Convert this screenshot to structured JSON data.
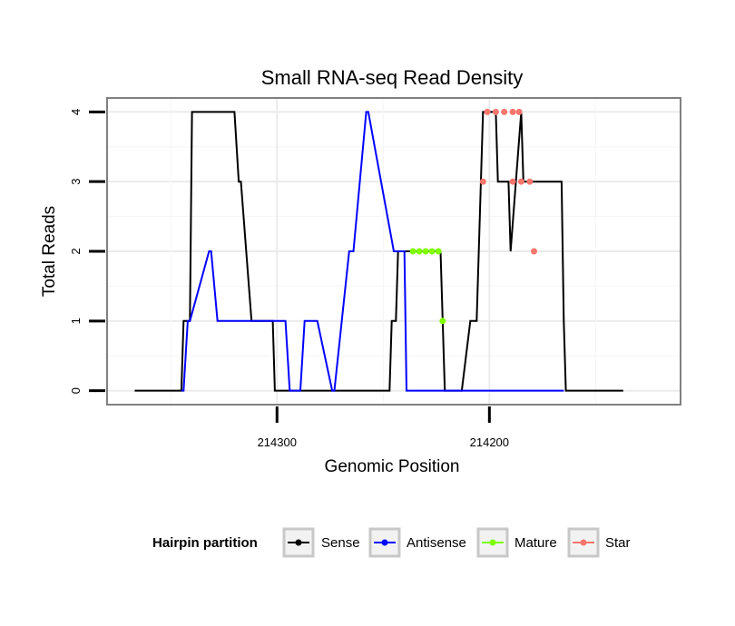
{
  "chart_data": {
    "type": "line",
    "title": "Small RNA-seq Read Density",
    "xlabel": "Genomic Position",
    "ylabel": "Total Reads",
    "x_reversed": true,
    "xlim": [
      214380,
      214110
    ],
    "ylim": [
      -0.2,
      4.2
    ],
    "x_ticks": [
      214300,
      214200
    ],
    "x_tick_labels": [
      "214300",
      "214200"
    ],
    "y_ticks": [
      0,
      1,
      2,
      3,
      4
    ],
    "y_tick_labels": [
      "0",
      "1",
      "2",
      "3",
      "4"
    ],
    "grid": true,
    "legend": {
      "title": "Hairpin partition",
      "position": "bottom",
      "entries": [
        "Sense",
        "Antisense",
        "Mature",
        "Star"
      ]
    },
    "series": [
      {
        "name": "Sense",
        "color": "#000000",
        "markers": false,
        "x": [
          214367,
          214345,
          214344,
          214341,
          214340,
          214337,
          214320,
          214318,
          214317,
          214312,
          214311,
          214302,
          214301,
          214286,
          214285,
          214278,
          214277,
          214270,
          214269,
          214265,
          214264,
          214257,
          214256,
          214247,
          214246,
          214244,
          214243,
          214236,
          214235,
          214223,
          214221,
          214213,
          214209,
          214206,
          214203,
          214202,
          214197,
          214196,
          214191,
          214190,
          214185,
          214184,
          214167,
          214166,
          214165,
          214164,
          214137
        ],
        "y": [
          0,
          0,
          1,
          1,
          4,
          4,
          4,
          3,
          3,
          1,
          1,
          1,
          0,
          0,
          0,
          0,
          0,
          0,
          0,
          0,
          0,
          0,
          0,
          0,
          1,
          1,
          2,
          2,
          2,
          2,
          0,
          0,
          1,
          1,
          4,
          4,
          4,
          3,
          3,
          2,
          4,
          3,
          3,
          3,
          1,
          0,
          0
        ]
      },
      {
        "name": "Antisense",
        "color": "#0000ff",
        "markers": false,
        "x": [
          214345,
          214344,
          214342,
          214341,
          214332,
          214331,
          214328,
          214327,
          214296,
          214294,
          214289,
          214287,
          214283,
          214281,
          214274,
          214273,
          214266,
          214264,
          214258,
          214257,
          214245,
          214244,
          214240,
          214239,
          214209,
          214165
        ],
        "y": [
          0,
          0,
          1,
          1,
          2,
          2,
          1,
          1,
          1,
          0,
          0,
          1,
          1,
          1,
          0,
          0,
          2,
          2,
          4,
          4,
          2,
          2,
          2,
          0,
          0,
          0
        ]
      },
      {
        "name": "Mature",
        "color": "#7fff00",
        "markers": true,
        "x": [
          214236,
          214233,
          214230,
          214227,
          214224,
          214222
        ],
        "y": [
          2,
          2,
          2,
          2,
          2,
          1
        ]
      },
      {
        "name": "Star",
        "color": "#f8766d",
        "markers": true,
        "x": [
          214203,
          214201,
          214197,
          214193,
          214189,
          214189,
          214185,
          214181,
          214179,
          214186
        ],
        "y": [
          3,
          4,
          4,
          4,
          4,
          3,
          3,
          3,
          2,
          4
        ]
      }
    ]
  }
}
